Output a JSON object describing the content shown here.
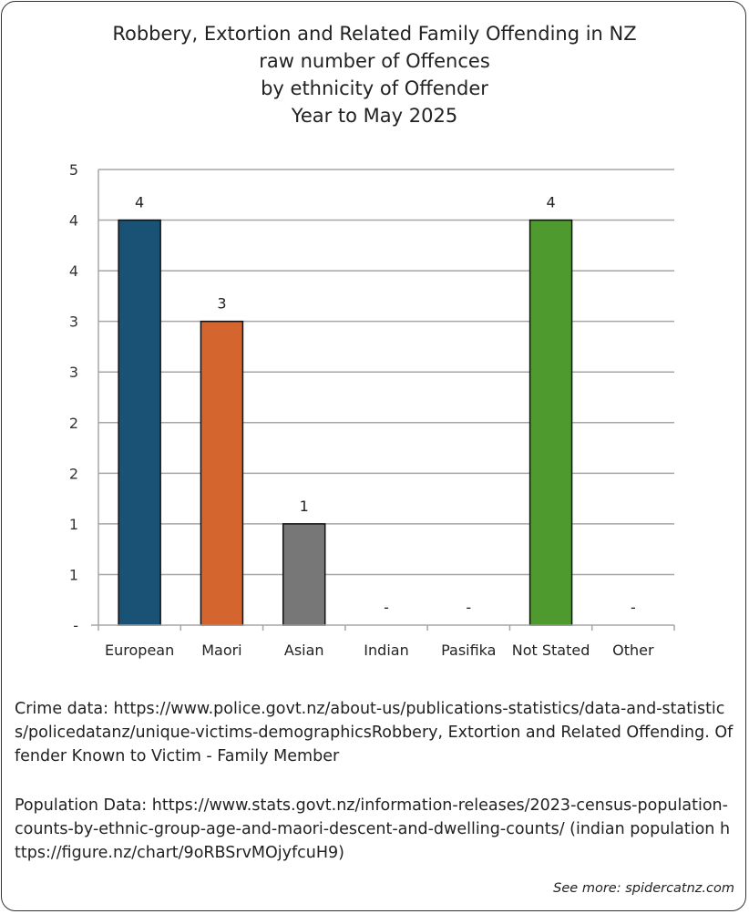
{
  "chart_data": {
    "type": "bar",
    "title_lines": [
      "Robbery, Extortion and Related Family Offending in NZ",
      "raw number of Offences",
      "by ethnicity of Offender",
      "Year to May 2025"
    ],
    "categories": [
      "European",
      "Maori",
      "Asian",
      "Indian",
      "Pasifika",
      "Not Stated",
      "Other"
    ],
    "values": [
      4,
      3,
      1,
      0,
      0,
      4,
      0
    ],
    "data_labels": [
      "4",
      "3",
      "1",
      "-",
      "-",
      "4",
      "-"
    ],
    "bar_colors": [
      "#1a5276",
      "#d4652f",
      "#777777",
      "#4472c4",
      "#f2b705",
      "#4e9a2e",
      "#999999"
    ],
    "ylim": [
      0,
      4.5
    ],
    "y_ticks": [
      0,
      0.5,
      1,
      1.5,
      2,
      2.5,
      3,
      3.5,
      4,
      4.5
    ],
    "y_tick_labels": [
      "-",
      "1",
      "1",
      "2",
      "2",
      "3",
      "3",
      "4",
      "4",
      "5"
    ],
    "grid": true,
    "xlabel": "",
    "ylabel": ""
  },
  "sources": {
    "crime": "Crime data: https://www.police.govt.nz/about-us/publications-statistics/data-and-statistics/policedatanz/unique-victims-demographicsRobbery, Extortion and Related Offending. Offender Known to Victim - Family Member",
    "population": "Population Data: https://www.stats.govt.nz/information-releases/2023-census-population-counts-by-ethnic-group-age-and-maori-descent-and-dwelling-counts/ (indian population https://figure.nz/chart/9oRBSrvMOjyfcuH9)"
  },
  "see_more": "See more: spidercatnz.com"
}
